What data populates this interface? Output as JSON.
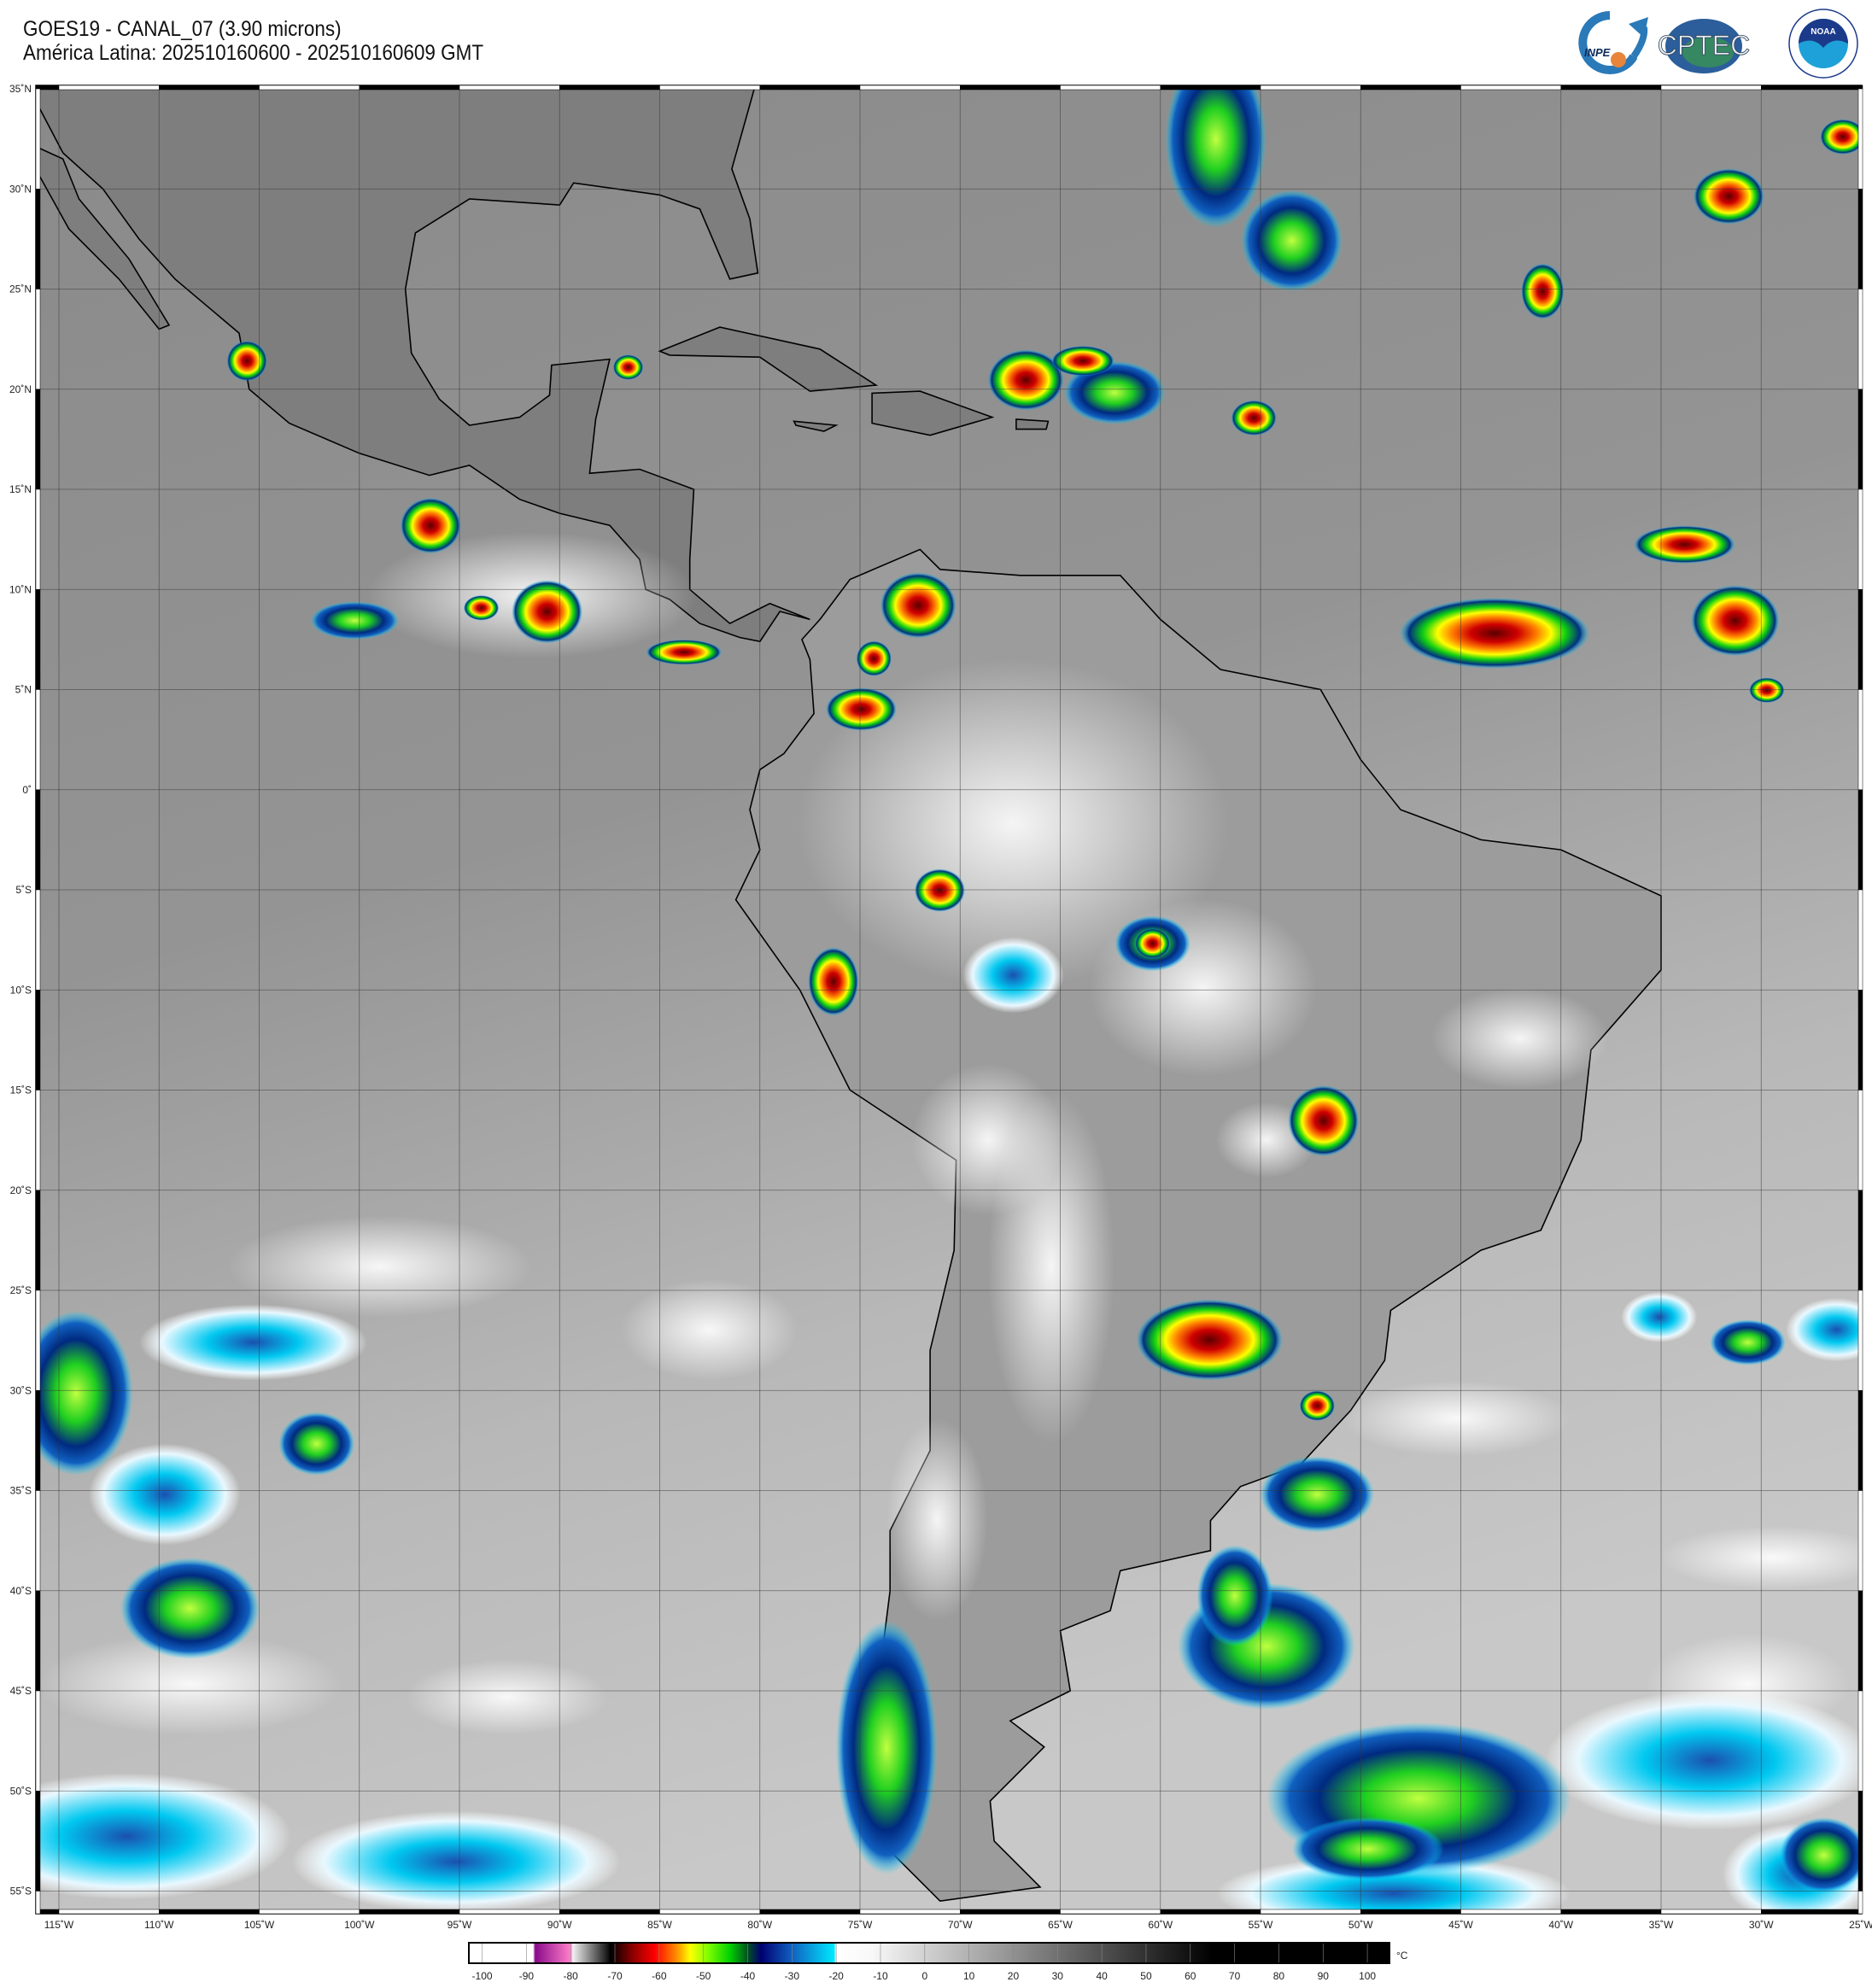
{
  "header": {
    "title_line1": "GOES19 - CANAL_07 (3.90 microns)",
    "title_line2": "América Latina: 202510160600 - 202510160609 GMT"
  },
  "logos": [
    {
      "name": "inpe-logo",
      "text": "INPE"
    },
    {
      "name": "cptec-logo",
      "text": "CPTEC"
    },
    {
      "name": "noaa-logo",
      "text": "NOAA",
      "ring_text": "NATIONAL OCEANIC AND ATMOSPHERIC ADMINISTRATION · U.S. DEPARTMENT OF COMMERCE"
    }
  ],
  "map": {
    "projection": "equirectangular",
    "lon_range": [
      -115,
      -25
    ],
    "lat_range": [
      -55,
      35
    ],
    "grid": true,
    "grid_step_deg": 5,
    "lat_labels": [
      "35˚N",
      "30˚N",
      "25˚N",
      "20˚N",
      "15˚N",
      "10˚N",
      "5˚N",
      "0˚",
      "5˚S",
      "10˚S",
      "15˚S",
      "20˚S",
      "25˚S",
      "30˚S",
      "35˚S",
      "40˚S",
      "45˚S",
      "50˚S",
      "55˚S"
    ],
    "lat_values": [
      35,
      30,
      25,
      20,
      15,
      10,
      5,
      0,
      -5,
      -10,
      -15,
      -20,
      -25,
      -30,
      -35,
      -40,
      -45,
      -50,
      -55
    ],
    "lon_labels": [
      "115˚W",
      "110˚W",
      "105˚W",
      "100˚W",
      "95˚W",
      "90˚W",
      "85˚W",
      "80˚W",
      "75˚W",
      "70˚W",
      "65˚W",
      "60˚W",
      "55˚W",
      "50˚W",
      "45˚W",
      "40˚W",
      "35˚W",
      "30˚W",
      "25˚W"
    ],
    "lon_values": [
      -115,
      -110,
      -105,
      -100,
      -95,
      -90,
      -85,
      -80,
      -75,
      -70,
      -65,
      -60,
      -55,
      -50,
      -45,
      -40,
      -35,
      -30,
      -25
    ]
  },
  "colorbar": {
    "unit": "°C",
    "range": [
      -103,
      105
    ],
    "ticks": [
      "-100",
      "-90",
      "-80",
      "-70",
      "-60",
      "-50",
      "-40",
      "-30",
      "-20",
      "-10",
      "0",
      "10",
      "20",
      "30",
      "40",
      "50",
      "60",
      "70",
      "80",
      "90",
      "100"
    ],
    "tick_values": [
      -100,
      -90,
      -80,
      -70,
      -60,
      -50,
      -40,
      -30,
      -20,
      -10,
      0,
      10,
      20,
      30,
      40,
      50,
      60,
      70,
      80,
      90,
      100
    ],
    "stops": [
      {
        "v": -103,
        "c": "#ffffff"
      },
      {
        "v": -88.5,
        "c": "#ffffff"
      },
      {
        "v": -88,
        "c": "#8a0a8a"
      },
      {
        "v": -80,
        "c": "#ff80c8"
      },
      {
        "v": -79.5,
        "c": "#f0f0f0"
      },
      {
        "v": -72,
        "c": "#222222"
      },
      {
        "v": -71,
        "c": "#000000"
      },
      {
        "v": -66,
        "c": "#8b0000"
      },
      {
        "v": -61,
        "c": "#ff0000"
      },
      {
        "v": -56,
        "c": "#ff9000"
      },
      {
        "v": -53,
        "c": "#ffff00"
      },
      {
        "v": -49,
        "c": "#80ff00"
      },
      {
        "v": -44,
        "c": "#00d000"
      },
      {
        "v": -40,
        "c": "#005020"
      },
      {
        "v": -37,
        "c": "#000070"
      },
      {
        "v": -30,
        "c": "#1060c0"
      },
      {
        "v": -20.5,
        "c": "#00e8ff"
      },
      {
        "v": -20,
        "c": "#ffffff"
      },
      {
        "v": -12,
        "c": "#f8f8f8"
      },
      {
        "v": 65,
        "c": "#000000"
      },
      {
        "v": 105,
        "c": "#000000"
      }
    ]
  },
  "colors": {
    "ocean_warm": "#8a8a8a",
    "ocean_cool": "#c4c4c4",
    "coastline": "#000000",
    "grid": "#333333"
  }
}
